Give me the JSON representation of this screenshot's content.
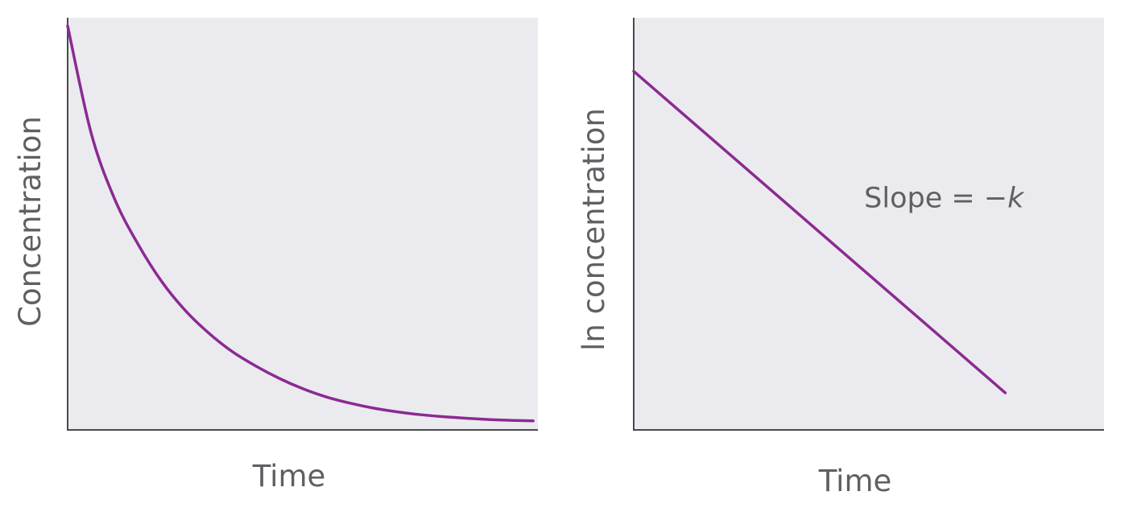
{
  "colors": {
    "series": "#8b2a92",
    "plot_background": "#ebebef",
    "axis": "#4a4a4e",
    "text": "#5f6064"
  },
  "chart_data": [
    {
      "type": "line",
      "title": "",
      "xlabel": "Time",
      "ylabel": "Concentration",
      "grid": false,
      "legend": "none",
      "xlim": [
        0,
        100
      ],
      "ylim": [
        0,
        100
      ],
      "series": [
        {
          "x": [
            0,
            5,
            10,
            15,
            20,
            25,
            30,
            35,
            40,
            45,
            50,
            55,
            60,
            65,
            70,
            75,
            80,
            85,
            90,
            95,
            99
          ],
          "y": [
            98,
            72,
            56,
            45,
            36,
            29,
            23.5,
            19,
            15.5,
            12.5,
            10,
            8,
            6.5,
            5.3,
            4.4,
            3.7,
            3.2,
            2.8,
            2.5,
            2.3,
            2.2
          ]
        }
      ],
      "annotations": []
    },
    {
      "type": "line",
      "title": "",
      "xlabel": "Time",
      "ylabel": "ln concentration",
      "grid": false,
      "legend": "none",
      "xlim": [
        0,
        100
      ],
      "ylim": [
        0,
        100
      ],
      "series": [
        {
          "x": [
            0,
            79
          ],
          "y": [
            87,
            9
          ]
        }
      ],
      "annotations": [
        {
          "prefix": "Slope = −",
          "italic": "k",
          "x": 49,
          "y": 54
        }
      ]
    }
  ]
}
